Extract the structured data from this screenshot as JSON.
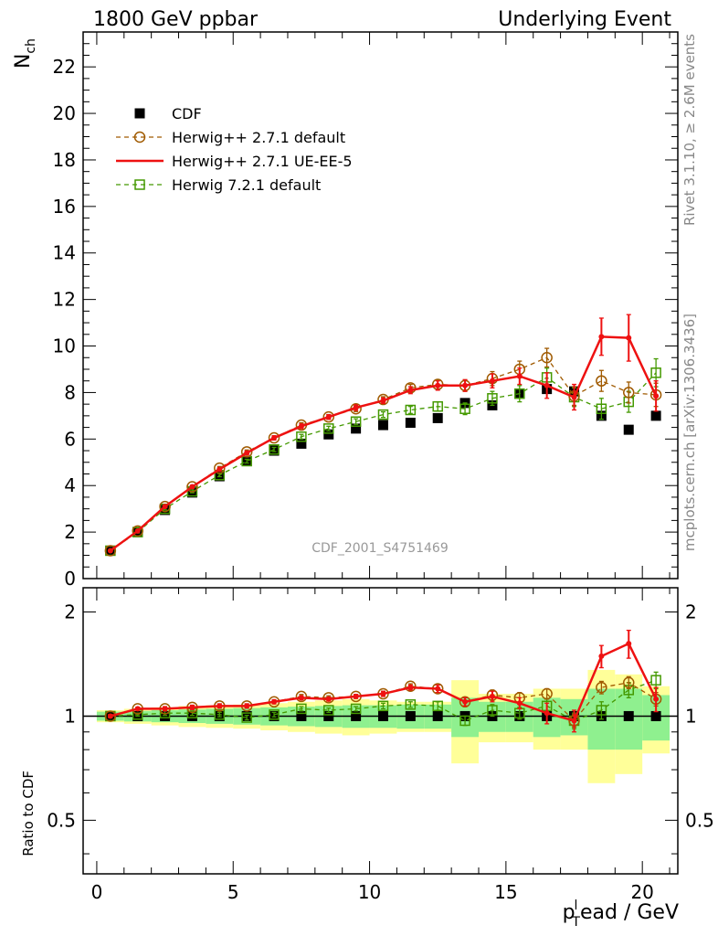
{
  "header": {
    "left": "1800 GeV ppbar",
    "right": "Underlying Event"
  },
  "side_text": {
    "rivet": "Rivet 3.1.10, ≥ 2.6M events",
    "mcplots": "mcplots.cern.ch [arXiv:1306.3436]"
  },
  "watermark": "CDF_2001_S4751469",
  "colors": {
    "data": "#000000",
    "herwigpp_default": "#a05a00",
    "herwigpp_ueee5": "#ee1111",
    "herwig721": "#449900",
    "band_inner": "#8ff08f",
    "band_outer": "#ffff99"
  },
  "chart_data": [
    {
      "type": "scatter",
      "panel": "main",
      "ylabel": "N",
      "ylabel_sub": "ch",
      "xlim": [
        -0.5,
        21.3
      ],
      "ylim": [
        0,
        23.5
      ],
      "yticks": [
        0,
        2,
        4,
        6,
        8,
        10,
        12,
        14,
        16,
        18,
        20,
        22
      ],
      "ytick_labels": [
        "0",
        "2",
        "4",
        "6",
        "8",
        "10",
        "12",
        "14",
        "16",
        "18",
        "20",
        "22"
      ],
      "legend_position": "top-left",
      "x": [
        0.5,
        1.5,
        2.5,
        3.5,
        4.5,
        5.5,
        6.5,
        7.5,
        8.5,
        9.5,
        10.5,
        11.5,
        12.5,
        13.5,
        14.5,
        15.5,
        16.5,
        17.5,
        18.5,
        19.5,
        20.5
      ],
      "series": [
        {
          "name": "CDF",
          "key": "data",
          "marker": "filled-square",
          "values": [
            1.2,
            2.0,
            2.95,
            3.7,
            4.4,
            5.05,
            5.5,
            5.8,
            6.2,
            6.45,
            6.6,
            6.7,
            6.9,
            7.55,
            7.45,
            7.95,
            8.15,
            8.05,
            7.0,
            6.4,
            7.0
          ]
        },
        {
          "name": "Herwig++ 2.7.1 default",
          "key": "herwigpp_default",
          "marker": "open-circle",
          "line": "dashed",
          "values": [
            1.2,
            2.05,
            3.1,
            3.95,
            4.75,
            5.45,
            6.05,
            6.6,
            6.95,
            7.3,
            7.7,
            8.2,
            8.35,
            8.3,
            8.6,
            9.0,
            9.5,
            7.85,
            8.5,
            8.0,
            7.9
          ],
          "errors": [
            0.03,
            0.04,
            0.05,
            0.06,
            0.07,
            0.08,
            0.09,
            0.1,
            0.1,
            0.12,
            0.12,
            0.15,
            0.2,
            0.25,
            0.3,
            0.35,
            0.4,
            0.4,
            0.45,
            0.45,
            0.5
          ]
        },
        {
          "name": "Herwig++ 2.7.1 UE-EE-5",
          "key": "herwigpp_ueee5",
          "marker": "dot",
          "line": "solid",
          "values": [
            1.2,
            2.05,
            3.1,
            3.95,
            4.7,
            5.4,
            6.05,
            6.55,
            6.95,
            7.35,
            7.65,
            8.1,
            8.3,
            8.3,
            8.5,
            8.7,
            8.3,
            7.8,
            10.4,
            10.35,
            7.85
          ],
          "errors": [
            0.03,
            0.04,
            0.05,
            0.06,
            0.07,
            0.08,
            0.09,
            0.1,
            0.1,
            0.12,
            0.12,
            0.15,
            0.2,
            0.25,
            0.3,
            0.35,
            0.55,
            0.55,
            0.8,
            1.0,
            0.65
          ]
        },
        {
          "name": "Herwig 7.2.1 default",
          "key": "herwig721",
          "marker": "open-square",
          "line": "dashed",
          "values": [
            1.2,
            2.0,
            3.0,
            3.75,
            4.45,
            5.05,
            5.55,
            6.1,
            6.45,
            6.75,
            7.05,
            7.25,
            7.4,
            7.3,
            7.75,
            7.95,
            8.65,
            7.8,
            7.3,
            7.6,
            8.85
          ],
          "errors": [
            0.03,
            0.04,
            0.05,
            0.06,
            0.07,
            0.08,
            0.09,
            0.1,
            0.1,
            0.12,
            0.12,
            0.15,
            0.2,
            0.25,
            0.3,
            0.35,
            0.4,
            0.4,
            0.45,
            0.45,
            0.6
          ]
        }
      ]
    },
    {
      "type": "scatter",
      "panel": "ratio",
      "ylabel": "Ratio to CDF",
      "xlabel": "p",
      "xlabel_sub": "T",
      "xlabel_sup": "l",
      "xlabel_rest": "ead / GeV",
      "xlim": [
        -0.5,
        21.3
      ],
      "ylim": [
        0.35,
        2.35
      ],
      "xticks": [
        0,
        5,
        10,
        15,
        20
      ],
      "xtick_labels": [
        "0",
        "5",
        "10",
        "15",
        "20"
      ],
      "yticks": [
        0.5,
        1,
        2
      ],
      "ytick_labels": [
        "0.5",
        "1",
        "2"
      ],
      "x": [
        0.5,
        1.5,
        2.5,
        3.5,
        4.5,
        5.5,
        6.5,
        7.5,
        8.5,
        9.5,
        10.5,
        11.5,
        12.5,
        13.5,
        14.5,
        15.5,
        16.5,
        17.5,
        18.5,
        19.5,
        20.5
      ],
      "band_inner": [
        0.03,
        0.035,
        0.04,
        0.045,
        0.05,
        0.055,
        0.06,
        0.065,
        0.07,
        0.075,
        0.075,
        0.08,
        0.08,
        0.13,
        0.1,
        0.1,
        0.13,
        0.12,
        0.2,
        0.2,
        0.15
      ],
      "band_outer": [
        0.04,
        0.05,
        0.06,
        0.07,
        0.075,
        0.08,
        0.09,
        0.1,
        0.11,
        0.12,
        0.11,
        0.1,
        0.1,
        0.27,
        0.16,
        0.16,
        0.2,
        0.2,
        0.36,
        0.32,
        0.22
      ],
      "series": [
        {
          "key": "herwigpp_default",
          "marker": "open-circle",
          "line": "dashed",
          "values": [
            1.0,
            1.05,
            1.05,
            1.06,
            1.07,
            1.07,
            1.1,
            1.14,
            1.13,
            1.14,
            1.16,
            1.22,
            1.2,
            1.1,
            1.15,
            1.13,
            1.16,
            0.97,
            1.21,
            1.25,
            1.12
          ],
          "errors": [
            0.01,
            0.01,
            0.015,
            0.015,
            0.015,
            0.015,
            0.015,
            0.015,
            0.015,
            0.015,
            0.02,
            0.02,
            0.03,
            0.03,
            0.04,
            0.04,
            0.04,
            0.04,
            0.05,
            0.05,
            0.05
          ]
        },
        {
          "key": "herwigpp_ueee5",
          "marker": "dot",
          "line": "solid",
          "values": [
            1.0,
            1.05,
            1.05,
            1.06,
            1.07,
            1.07,
            1.1,
            1.13,
            1.12,
            1.14,
            1.16,
            1.21,
            1.2,
            1.1,
            1.14,
            1.09,
            1.02,
            0.97,
            1.49,
            1.62,
            1.12
          ],
          "errors": [
            0.01,
            0.01,
            0.015,
            0.015,
            0.015,
            0.015,
            0.015,
            0.015,
            0.015,
            0.015,
            0.02,
            0.02,
            0.03,
            0.03,
            0.04,
            0.04,
            0.07,
            0.07,
            0.11,
            0.15,
            0.09
          ]
        },
        {
          "key": "herwig721",
          "marker": "open-square",
          "line": "dashed",
          "values": [
            1.0,
            1.01,
            1.02,
            1.02,
            1.01,
            0.99,
            1.01,
            1.05,
            1.04,
            1.05,
            1.07,
            1.08,
            1.07,
            0.97,
            1.04,
            1.02,
            1.07,
            0.97,
            1.04,
            1.19,
            1.27
          ],
          "errors": [
            0.01,
            0.01,
            0.015,
            0.015,
            0.015,
            0.015,
            0.015,
            0.015,
            0.015,
            0.015,
            0.02,
            0.02,
            0.03,
            0.03,
            0.04,
            0.04,
            0.05,
            0.05,
            0.06,
            0.06,
            0.07
          ]
        }
      ]
    }
  ]
}
